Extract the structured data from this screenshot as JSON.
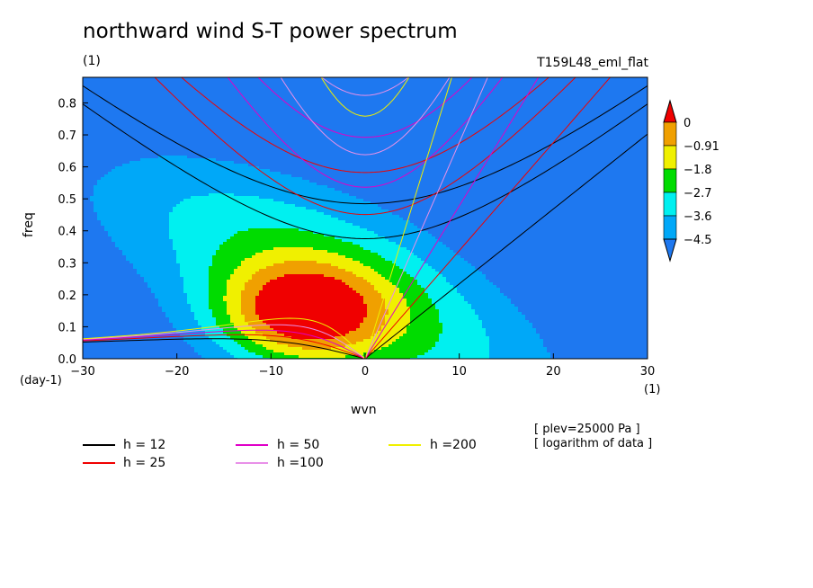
{
  "chart_data": {
    "type": "heatmap",
    "title": "northward wind S-T power spectrum",
    "subtitle_left": "(1)",
    "subtitle_right": "T159L48_eml_flat",
    "xlabel": "wvn",
    "ylabel": "freq",
    "x_unit": "(1)",
    "y_unit": "(day-1)",
    "xlim": [
      -30,
      30
    ],
    "ylim": [
      0,
      0.88
    ],
    "xticks": [
      "-30",
      "-20",
      "-10",
      "0",
      "10",
      "20",
      "30"
    ],
    "yticks": [
      "0.0",
      "0.1",
      "0.2",
      "0.3",
      "0.4",
      "0.5",
      "0.6",
      "0.7",
      "0.8"
    ],
    "colorbar": {
      "labels": [
        "0",
        "-0.91",
        "-1.8",
        "-2.7",
        "-3.6",
        "-4.5"
      ],
      "levels": [
        -5.4,
        -4.5,
        -3.6,
        -2.7,
        -1.8,
        -0.91,
        0,
        0.9
      ],
      "colors": [
        "#1e78f0",
        "#00a8f8",
        "#00f0f0",
        "#00dc00",
        "#f0f000",
        "#f0a000",
        "#f00000"
      ]
    },
    "annotations": [
      "[ plev=25000 Pa ]",
      "[ logarithm of data ]"
    ],
    "legend": [
      {
        "label": "h = 12",
        "color": "#000000"
      },
      {
        "label": "h = 25",
        "color": "#f00000"
      },
      {
        "label": "h = 50",
        "color": "#e000c8"
      },
      {
        "label": "h =100",
        "color": "#e890e8"
      },
      {
        "label": "h =200",
        "color": "#f0f000"
      }
    ],
    "dispersion_curves": {
      "equivalent_depths": [
        12,
        25,
        50,
        100,
        200
      ],
      "families": [
        "kelvin",
        "rossby",
        "inertia-gravity n=1",
        "inertia-gravity n=2"
      ]
    }
  }
}
